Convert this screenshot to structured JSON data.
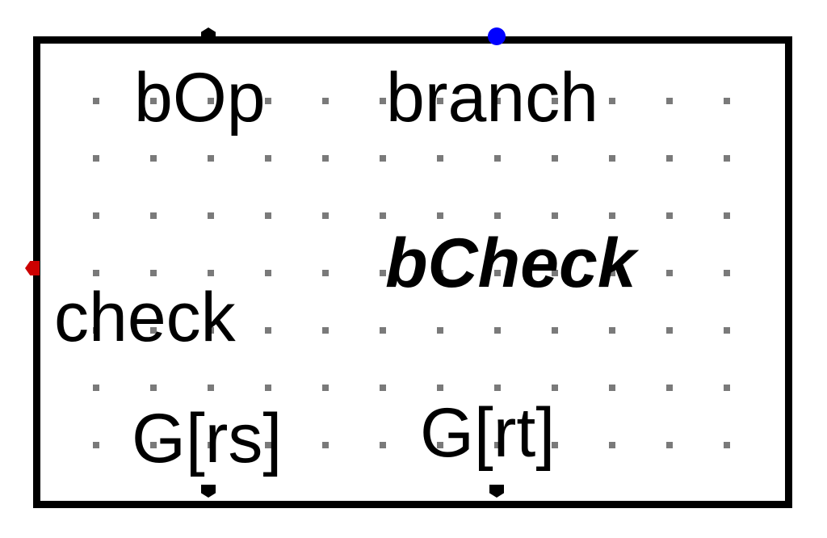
{
  "component": {
    "operation_port": "bOp",
    "output_port": "branch",
    "component_name": "bCheck",
    "check_port": "check",
    "input_rs": "G[rs]",
    "input_rt": "G[rt]"
  },
  "colors": {
    "outline": "#000000",
    "grid_dot": "#7a7a7a",
    "output_pin": "#0000ff",
    "check_pin": "#cc0000",
    "default_pin": "#000000"
  }
}
